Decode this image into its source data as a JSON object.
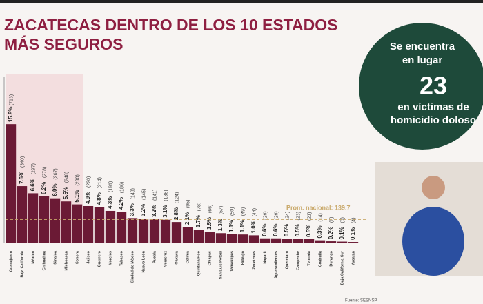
{
  "chart_data": {
    "type": "bar",
    "title_lines": [
      "ZACATECAS DENTRO DE LOS 10 ESTADOS",
      "MÁS SEGUROS"
    ],
    "categories": [
      "Guanajuato",
      "Baja California",
      "México",
      "Chihuahua",
      "Sinaloa",
      "Michoacán",
      "Sonora",
      "Jalisco",
      "Guerrero",
      "Morelos",
      "Tabasco",
      "Ciudad de México",
      "Nuevo León",
      "Puebla",
      "Veracruz",
      "Oaxaca",
      "Colima",
      "Quintana Roo",
      "Chiapas",
      "San Luis Potosí",
      "Tamaulipas",
      "Hidalgo",
      "Zacatecas",
      "Nayarit",
      "Aguascalientes",
      "Querétaro",
      "Campeche",
      "Tlaxcala",
      "Coahuila",
      "Durango",
      "Baja California Sur",
      "Yucatán"
    ],
    "values": [
      713,
      340,
      297,
      278,
      267,
      248,
      230,
      220,
      214,
      191,
      186,
      148,
      145,
      141,
      138,
      124,
      95,
      78,
      66,
      57,
      50,
      49,
      44,
      26,
      26,
      24,
      23,
      21,
      14,
      8,
      6,
      4
    ],
    "value_labels": [
      "(713)",
      "(340)",
      "(297)",
      "(278)",
      "(267)",
      "(248)",
      "(230)",
      "(220)",
      "(214)",
      "(191)",
      "(186)",
      "(148)",
      "(145)",
      "(141)",
      "(138)",
      "(124)",
      "(95)",
      "(78)",
      "(66)",
      "(57)",
      "(50)",
      "(49)",
      "(44)",
      "(26)",
      "(26)",
      "(24)",
      "(23)",
      "(21)",
      "(14)",
      "(8)",
      "(6)",
      "(4)"
    ],
    "share_labels": [
      "15.9%",
      "7.6%",
      "6.6%",
      "6.2%",
      "6.0%",
      "5.5%",
      "5.1%",
      "4.9%",
      "4.8%",
      "4.3%",
      "4.2%",
      "3.3%",
      "3.2%",
      "3.2%",
      "3.1%",
      "2.8%",
      "2.1%",
      "1.7%",
      "1.5%",
      "1.3%",
      "1.1%",
      "1.1%",
      "1.0%",
      "0.6%",
      "0.6%",
      "0.5%",
      "0.5%",
      "0.5%",
      "0.3%",
      "0.2%",
      "0.1%",
      "0.1%"
    ],
    "color": "#6b1a35",
    "ylim": [
      0,
      1000
    ],
    "average": {
      "label": "Prom. nacional: 139.7",
      "value": 139.7
    },
    "source": "Fuente: SESNSP",
    "badge": {
      "line1": "Se encuentra",
      "line2": "en lugar",
      "rank": "23",
      "line3": "en víctimas de",
      "line4": "homicidio doloso"
    }
  }
}
